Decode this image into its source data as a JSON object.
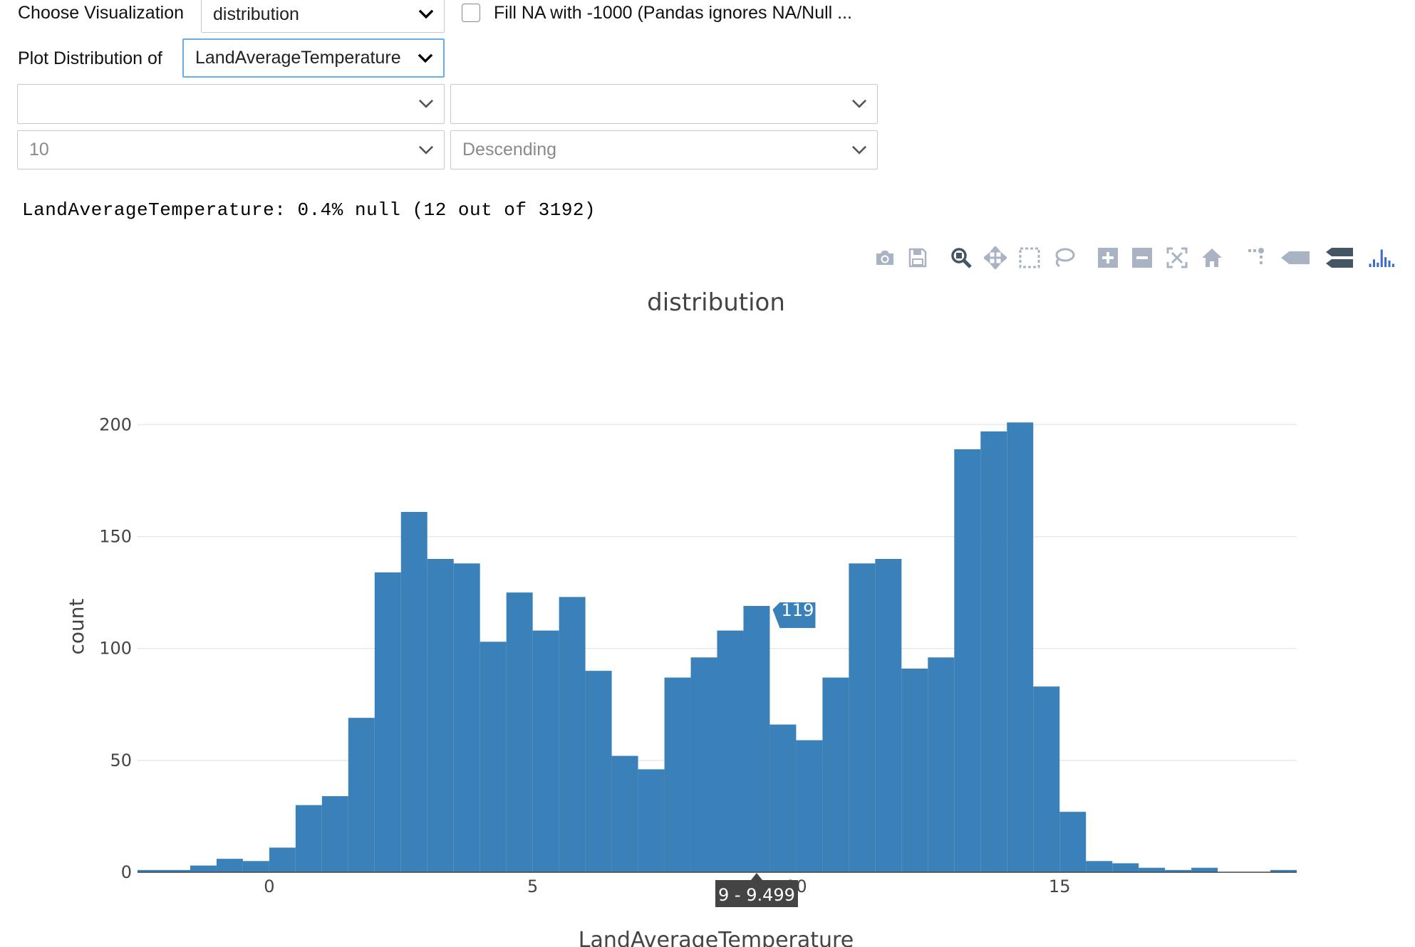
{
  "controls": {
    "viz_label": "Choose Visualization",
    "viz_value": "distribution",
    "fillna_label": "Fill NA with -1000 (Pandas ignores NA/Null ...",
    "plot_of_label": "Plot Distribution of",
    "plot_of_value": "LandAverageTemperature",
    "select_a_value": "",
    "select_b_value": "",
    "top_n_value": "10",
    "order_value": "Descending"
  },
  "null_info": "LandAverageTemperature: 0.4% null (12 out of 3192)",
  "modebar": [
    "camera-icon",
    "save-icon",
    "zoom-icon",
    "pan-icon",
    "box-select-icon",
    "lasso-icon",
    "zoom-in-icon",
    "zoom-out-icon",
    "autoscale-icon",
    "reset-axes-icon",
    "spike-lines-icon",
    "hover-closest-icon",
    "hover-compare-icon",
    "plotly-logo-icon"
  ],
  "colors": {
    "bar": "#3a81ba",
    "grid": "#e8e8e8",
    "axis": "#444444",
    "hover_bg": "#3a81ba",
    "xhover_bg": "#444444"
  },
  "hover": {
    "value_label": "119",
    "range_label": "9 - 9.499"
  },
  "chart_data": {
    "type": "bar",
    "title": "distribution",
    "xlabel": "LandAverageTemperature",
    "ylabel": "count",
    "xlim": [
      -2.5,
      19.5
    ],
    "ylim": [
      0,
      210
    ],
    "xticks": [
      0,
      5,
      10,
      15
    ],
    "yticks": [
      0,
      50,
      100,
      150,
      200
    ],
    "bin_width": 0.5,
    "bins_start": [
      -2.5,
      -2,
      -1.5,
      -1,
      -0.5,
      0,
      0.5,
      1,
      1.5,
      2,
      2.5,
      3,
      3.5,
      4,
      4.5,
      5,
      5.5,
      6,
      6.5,
      7,
      7.5,
      8,
      8.5,
      9,
      9.5,
      10,
      10.5,
      11,
      11.5,
      12,
      12.5,
      13,
      13.5,
      14,
      14.5,
      15,
      15.5,
      16,
      16.5,
      17,
      17.5,
      18,
      18.5,
      19
    ],
    "values": [
      1,
      1,
      3,
      6,
      5,
      11,
      30,
      34,
      69,
      134,
      161,
      140,
      138,
      103,
      125,
      108,
      123,
      90,
      52,
      46,
      87,
      96,
      108,
      119,
      66,
      59,
      87,
      138,
      140,
      91,
      96,
      189,
      197,
      201,
      83,
      27,
      5,
      4,
      2,
      1,
      2,
      0,
      0,
      1
    ],
    "grid": true
  }
}
